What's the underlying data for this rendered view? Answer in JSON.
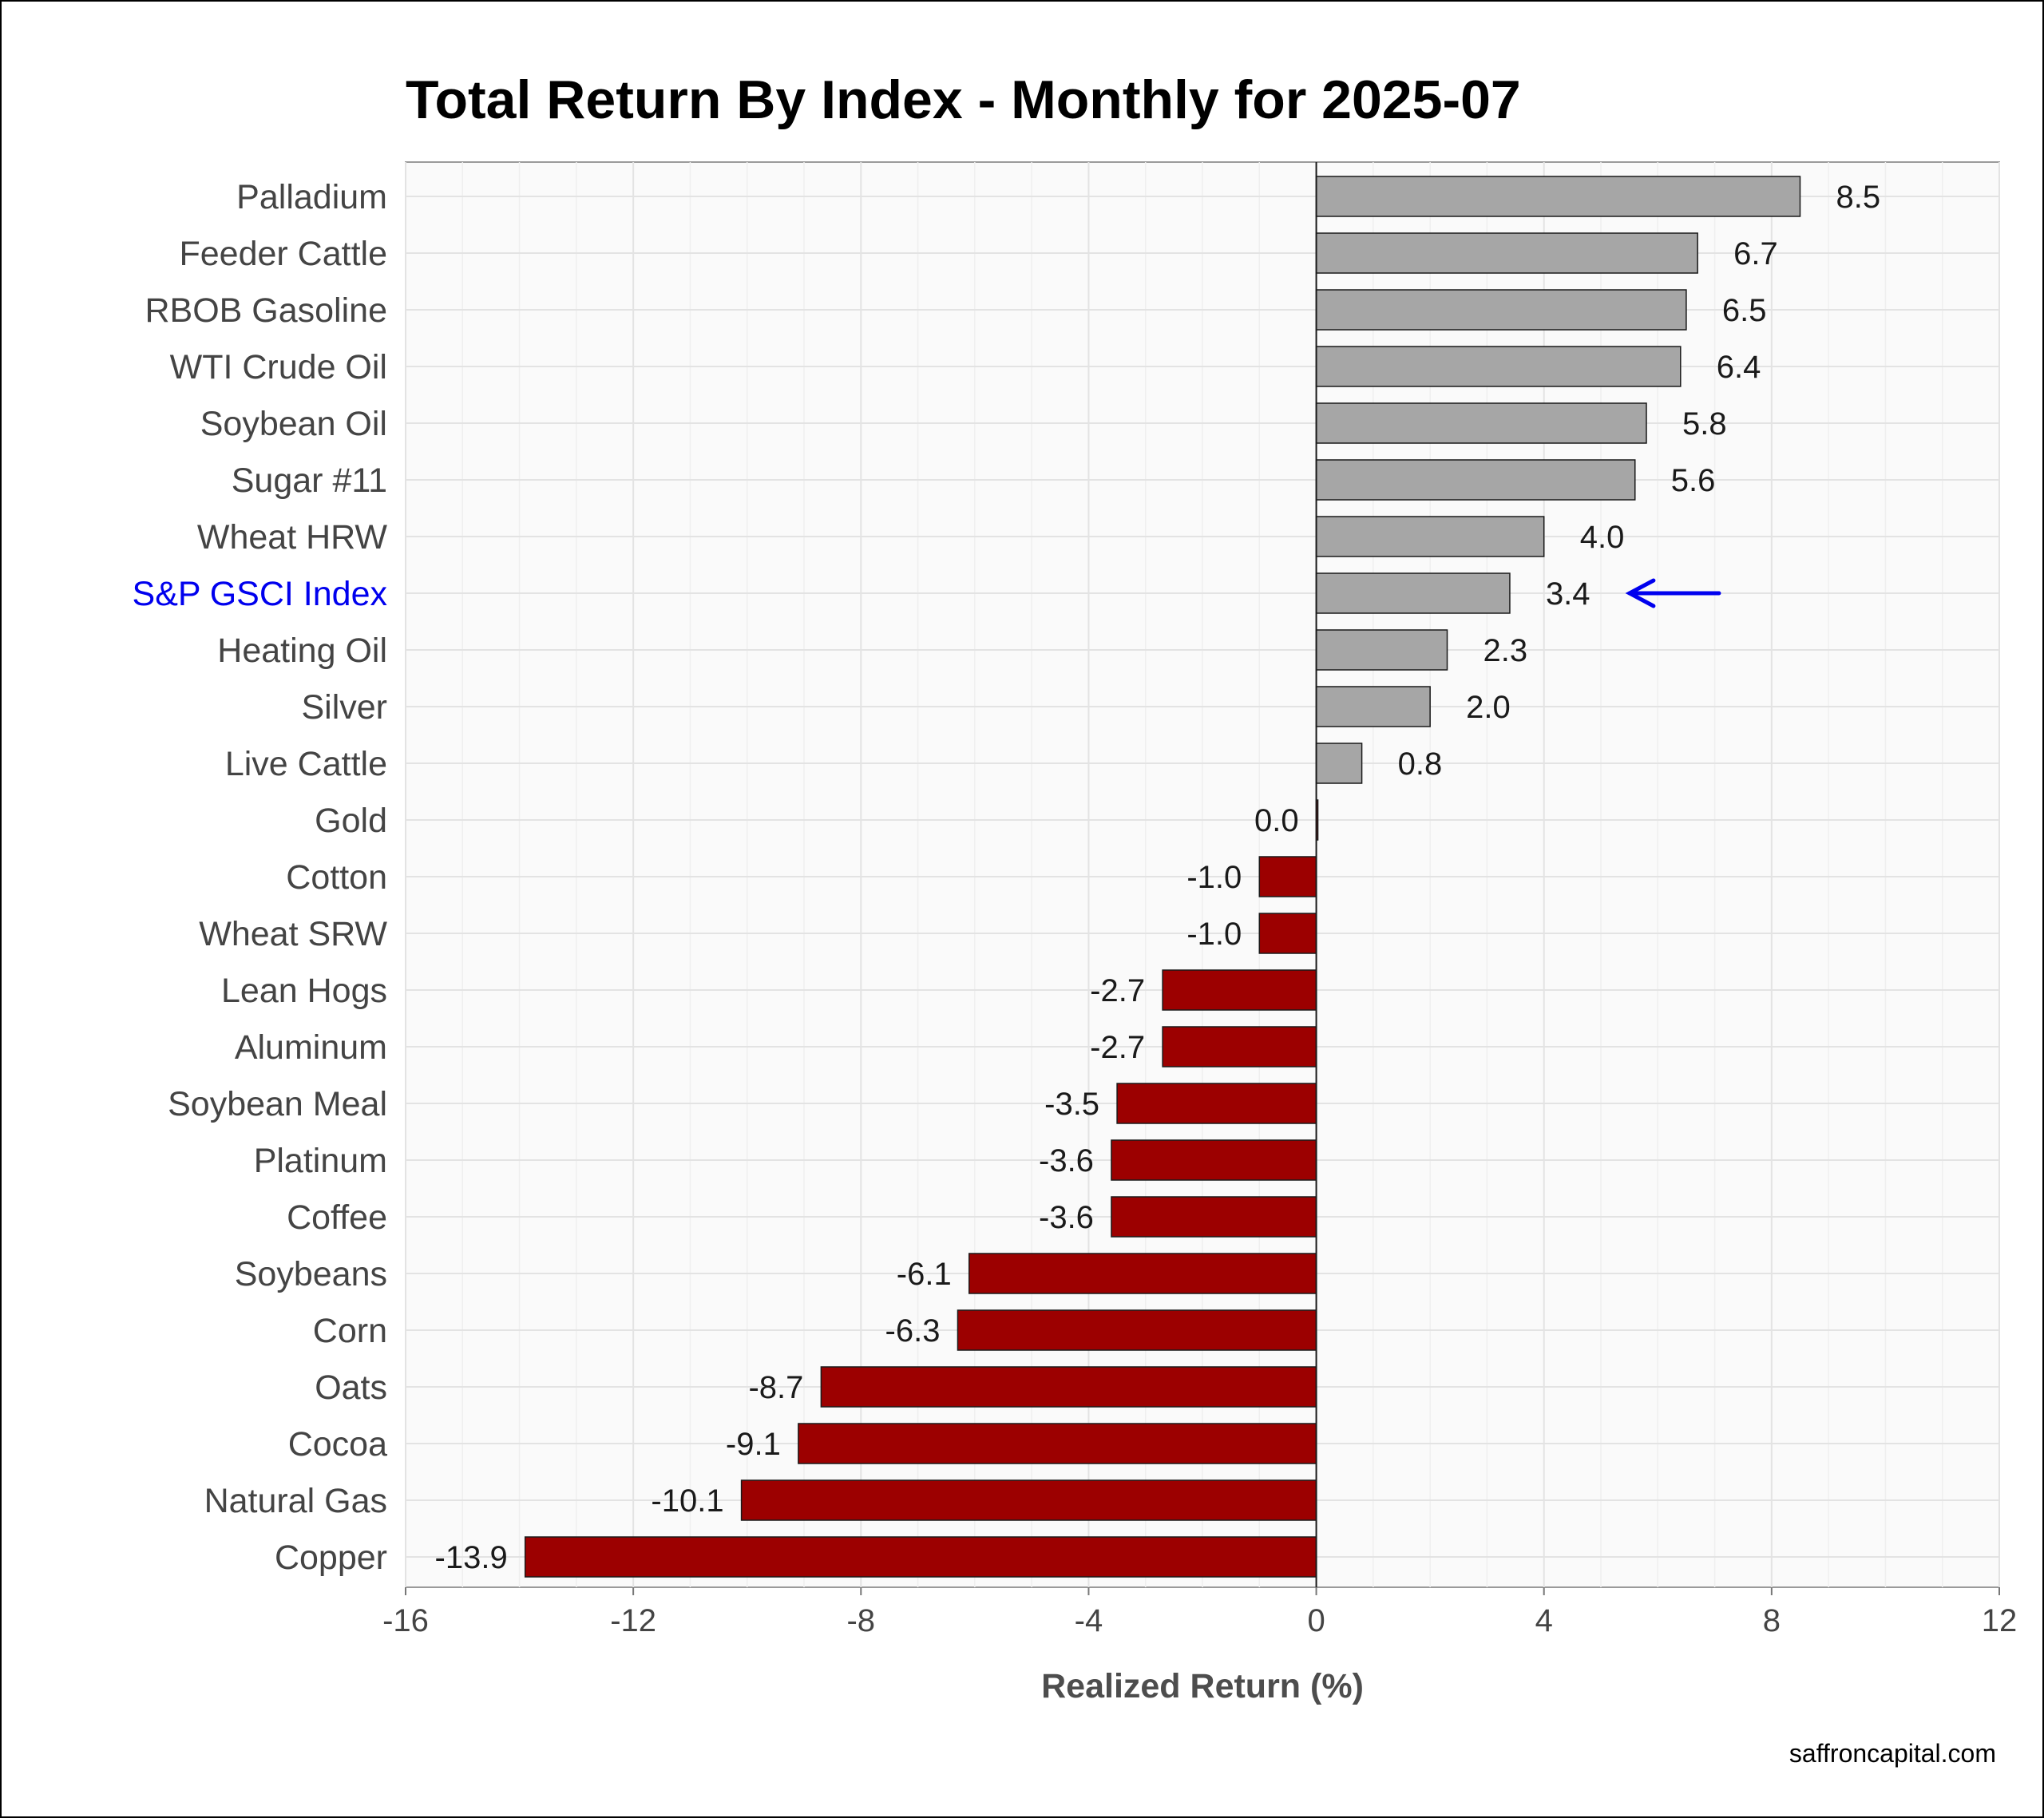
{
  "chart_data": {
    "type": "bar",
    "orientation": "horizontal",
    "title": "Total Return By Index - Monthly for 2025-07",
    "xlabel": "Realized Return (%)",
    "ylabel": "",
    "xlim": [
      -16,
      12
    ],
    "xticks": [
      -16,
      -12,
      -8,
      -4,
      0,
      4,
      8,
      12
    ],
    "grid": true,
    "legend": "none",
    "categories": [
      "Palladium",
      "Feeder Cattle",
      "RBOB Gasoline",
      "WTI Crude Oil",
      "Soybean Oil",
      "Sugar #11",
      "Wheat HRW",
      "S&P GSCI Index",
      "Heating Oil",
      "Silver",
      "Live Cattle",
      "Gold",
      "Cotton",
      "Wheat SRW",
      "Lean Hogs",
      "Aluminum",
      "Soybean Meal",
      "Platinum",
      "Coffee",
      "Soybeans",
      "Corn",
      "Oats",
      "Cocoa",
      "Natural Gas",
      "Copper"
    ],
    "values": [
      8.5,
      6.7,
      6.5,
      6.4,
      5.8,
      5.6,
      4.0,
      3.4,
      2.3,
      2.0,
      0.8,
      0.0,
      -1.0,
      -1.0,
      -2.7,
      -2.7,
      -3.5,
      -3.6,
      -3.6,
      -6.1,
      -6.3,
      -8.7,
      -9.1,
      -10.1,
      -13.9
    ],
    "value_labels": [
      "8.5",
      "6.7",
      "6.5",
      "6.4",
      "5.8",
      "5.6",
      "4.0",
      "3.4",
      "2.3",
      "2.0",
      "0.8",
      "0.0",
      "-1.0",
      "-1.0",
      "-2.7",
      "-2.7",
      "-3.5",
      "-3.6",
      "-3.6",
      "-6.1",
      "-6.3",
      "-8.7",
      "-9.1",
      "-10.1",
      "-13.9"
    ],
    "highlight_category": "S&P GSCI Index",
    "highlight_annotation": "arrow-left-icon",
    "colors": {
      "positive": "#a6a6a6",
      "negative": "#9c0000",
      "highlight": "#0000ee",
      "panel": "#fafafa",
      "grid": "#e3e3e3"
    }
  },
  "footer": {
    "source": "saffroncapital.com"
  }
}
